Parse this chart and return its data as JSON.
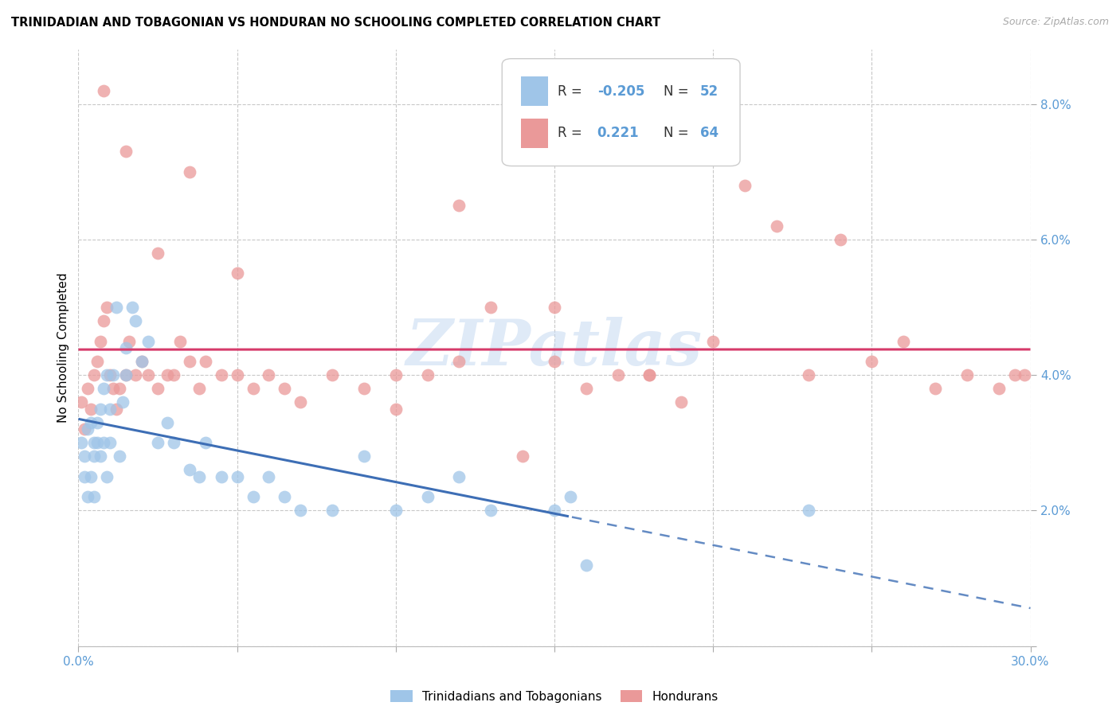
{
  "title": "TRINIDADIAN AND TOBAGONIAN VS HONDURAN NO SCHOOLING COMPLETED CORRELATION CHART",
  "source": "Source: ZipAtlas.com",
  "ylabel": "No Schooling Completed",
  "xlim": [
    0.0,
    0.3
  ],
  "ylim": [
    0.0,
    0.088
  ],
  "ytick_vals": [
    0.0,
    0.02,
    0.04,
    0.06,
    0.08
  ],
  "ytick_labels": [
    "",
    "2.0%",
    "4.0%",
    "6.0%",
    "8.0%"
  ],
  "xtick_vals": [
    0.0,
    0.05,
    0.1,
    0.15,
    0.2,
    0.25,
    0.3
  ],
  "xtick_labels": [
    "0.0%",
    "",
    "",
    "",
    "",
    "",
    "30.0%"
  ],
  "blue_color": "#9fc5e8",
  "pink_color": "#ea9999",
  "blue_line_color": "#3d6eb5",
  "pink_line_color": "#d63a6a",
  "legend_label_blue": "Trinidadians and Tobagonians",
  "legend_label_pink": "Hondurans",
  "R_blue_str": "-0.205",
  "N_blue_str": "52",
  "R_pink_str": "0.221",
  "N_pink_str": "64",
  "watermark_text": "ZIPatlas",
  "blue_x": [
    0.001,
    0.002,
    0.002,
    0.003,
    0.003,
    0.004,
    0.004,
    0.005,
    0.005,
    0.005,
    0.006,
    0.006,
    0.007,
    0.007,
    0.008,
    0.008,
    0.009,
    0.009,
    0.01,
    0.01,
    0.011,
    0.012,
    0.013,
    0.014,
    0.015,
    0.015,
    0.017,
    0.018,
    0.02,
    0.022,
    0.025,
    0.028,
    0.03,
    0.035,
    0.038,
    0.04,
    0.045,
    0.05,
    0.055,
    0.06,
    0.065,
    0.07,
    0.08,
    0.09,
    0.1,
    0.11,
    0.12,
    0.13,
    0.15,
    0.155,
    0.16,
    0.23
  ],
  "blue_y": [
    0.03,
    0.028,
    0.025,
    0.032,
    0.022,
    0.033,
    0.025,
    0.028,
    0.03,
    0.022,
    0.033,
    0.03,
    0.035,
    0.028,
    0.038,
    0.03,
    0.04,
    0.025,
    0.035,
    0.03,
    0.04,
    0.05,
    0.028,
    0.036,
    0.044,
    0.04,
    0.05,
    0.048,
    0.042,
    0.045,
    0.03,
    0.033,
    0.03,
    0.026,
    0.025,
    0.03,
    0.025,
    0.025,
    0.022,
    0.025,
    0.022,
    0.02,
    0.02,
    0.028,
    0.02,
    0.022,
    0.025,
    0.02,
    0.02,
    0.022,
    0.012,
    0.02
  ],
  "pink_x": [
    0.001,
    0.002,
    0.003,
    0.004,
    0.005,
    0.006,
    0.007,
    0.008,
    0.009,
    0.01,
    0.011,
    0.012,
    0.013,
    0.015,
    0.016,
    0.018,
    0.02,
    0.022,
    0.025,
    0.028,
    0.03,
    0.032,
    0.035,
    0.038,
    0.04,
    0.045,
    0.05,
    0.055,
    0.06,
    0.065,
    0.07,
    0.08,
    0.09,
    0.1,
    0.11,
    0.12,
    0.13,
    0.14,
    0.15,
    0.16,
    0.17,
    0.18,
    0.19,
    0.2,
    0.21,
    0.22,
    0.23,
    0.24,
    0.25,
    0.26,
    0.27,
    0.28,
    0.29,
    0.295,
    0.298,
    0.15,
    0.1,
    0.12,
    0.18,
    0.05,
    0.035,
    0.025,
    0.015,
    0.008
  ],
  "pink_y": [
    0.036,
    0.032,
    0.038,
    0.035,
    0.04,
    0.042,
    0.045,
    0.048,
    0.05,
    0.04,
    0.038,
    0.035,
    0.038,
    0.04,
    0.045,
    0.04,
    0.042,
    0.04,
    0.038,
    0.04,
    0.04,
    0.045,
    0.042,
    0.038,
    0.042,
    0.04,
    0.04,
    0.038,
    0.04,
    0.038,
    0.036,
    0.04,
    0.038,
    0.04,
    0.04,
    0.042,
    0.05,
    0.028,
    0.042,
    0.038,
    0.04,
    0.04,
    0.036,
    0.045,
    0.068,
    0.062,
    0.04,
    0.06,
    0.042,
    0.045,
    0.038,
    0.04,
    0.038,
    0.04,
    0.04,
    0.05,
    0.035,
    0.065,
    0.04,
    0.055,
    0.07,
    0.058,
    0.073,
    0.082
  ]
}
